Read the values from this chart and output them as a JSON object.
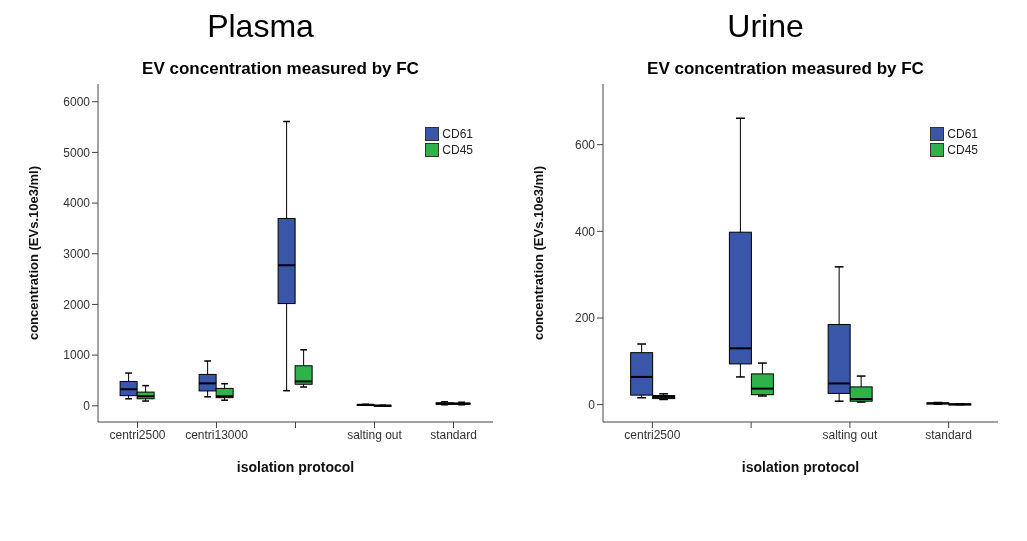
{
  "chart_data": [
    {
      "type": "box",
      "title": "Plasma",
      "subtitle": "EV concentration measured by FC",
      "xlabel": "isolation protocol",
      "ylabel": "concentration (EVs.10e3/ml)",
      "categories": [
        "centri2500",
        "centri13000",
        null,
        "salting out",
        "standard"
      ],
      "ylim": [
        -320,
        6350
      ],
      "yticks": [
        0,
        1000,
        2000,
        3000,
        4000,
        5000,
        6000
      ],
      "legend": "top right",
      "series": [
        {
          "name": "CD61",
          "color": "#3a56a8",
          "boxes": [
            {
              "low": 138,
              "q1": 200,
              "median": 326,
              "q3": 480,
              "high": 646
            },
            {
              "low": 177,
              "q1": 293,
              "median": 442,
              "q3": 619,
              "high": 884
            },
            {
              "low": 298,
              "q1": 2017,
              "median": 2773,
              "q3": 3696,
              "high": 5608
            },
            {
              "low": 10,
              "q1": 15,
              "median": 20,
              "q3": 25,
              "high": 30
            },
            {
              "low": 20,
              "q1": 30,
              "median": 40,
              "q3": 60,
              "high": 80
            }
          ]
        },
        {
          "name": "CD45",
          "color": "#2db34a",
          "boxes": [
            {
              "low": 94,
              "q1": 138,
              "median": 188,
              "q3": 270,
              "high": 398
            },
            {
              "low": 110,
              "q1": 160,
              "median": 188,
              "q3": 343,
              "high": 436
            },
            {
              "low": 370,
              "q1": 425,
              "median": 481,
              "q3": 790,
              "high": 1105
            },
            {
              "low": 0,
              "q1": 2,
              "median": 5,
              "q3": 8,
              "high": 10
            },
            {
              "low": 20,
              "q1": 30,
              "median": 40,
              "q3": 55,
              "high": 70
            }
          ]
        }
      ]
    },
    {
      "type": "box",
      "title": "Urine",
      "subtitle": "EV concentration measured by FC",
      "xlabel": "isolation protocol",
      "ylabel": "concentration (EVs.10e3/ml)",
      "categories": [
        "centri2500",
        null,
        "salting out",
        "standard"
      ],
      "ylim": [
        -40,
        740
      ],
      "yticks": [
        0,
        200,
        400,
        600
      ],
      "legend": "top right",
      "series": [
        {
          "name": "CD61",
          "color": "#3a56a8",
          "boxes": [
            {
              "low": 16,
              "q1": 22,
              "median": 64,
              "q3": 120,
              "high": 140
            },
            {
              "low": 64,
              "q1": 94,
              "median": 130,
              "q3": 398,
              "high": 661
            },
            {
              "low": 8,
              "q1": 26,
              "median": 49,
              "q3": 185,
              "high": 318
            },
            {
              "low": 1,
              "q1": 2,
              "median": 3,
              "q3": 4,
              "high": 5
            }
          ]
        },
        {
          "name": "CD45",
          "color": "#2db34a",
          "boxes": [
            {
              "low": 12,
              "q1": 14,
              "median": 18,
              "q3": 21,
              "high": 25
            },
            {
              "low": 20,
              "q1": 23,
              "median": 37,
              "q3": 71,
              "high": 96
            },
            {
              "low": 6,
              "q1": 8,
              "median": 13,
              "q3": 41,
              "high": 66
            },
            {
              "low": 0,
              "q1": 0.5,
              "median": 1,
              "q3": 1.5,
              "high": 2
            }
          ]
        }
      ]
    }
  ]
}
